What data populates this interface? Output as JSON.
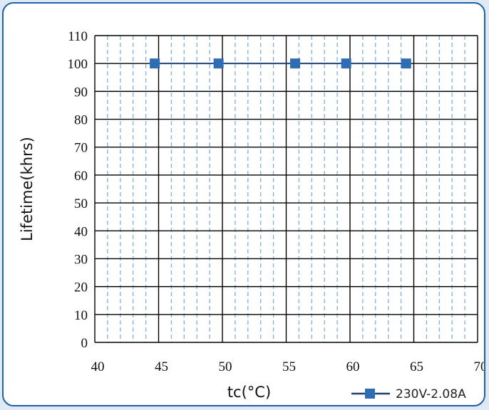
{
  "chart_data": {
    "type": "line",
    "xlabel": "tc(°C)",
    "ylabel": "Lifetime(khrs)",
    "xlim": [
      40,
      70
    ],
    "ylim": [
      0,
      110
    ],
    "x_ticks": [
      40,
      45,
      50,
      55,
      60,
      65,
      70
    ],
    "y_ticks": [
      0,
      10,
      20,
      30,
      40,
      50,
      60,
      70,
      80,
      90,
      100,
      110
    ],
    "grid": true,
    "legend": "bottom-right",
    "series": [
      {
        "name": "230V-2.08A",
        "color": "#2e6db4",
        "line_color": "#1f3f7a",
        "marker": "square",
        "x": [
          44.7,
          49.7,
          55.7,
          59.7,
          64.4
        ],
        "y": [
          100,
          100,
          100,
          100,
          100
        ]
      }
    ]
  }
}
